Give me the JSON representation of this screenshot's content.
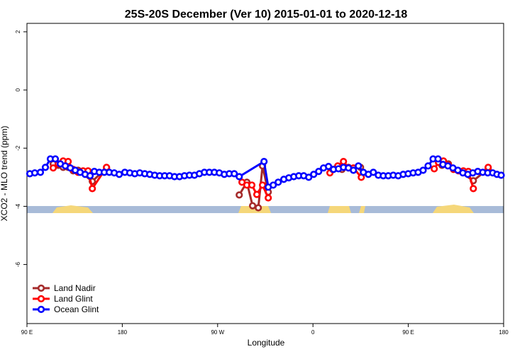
{
  "chart_data": {
    "type": "line",
    "title": "25S-20S December (Ver 10)   2015-01-01 to 2020-12-18",
    "x_label": "Longitude",
    "y_label": "XCO2 - MLO trend (ppm)",
    "xlim": [
      90,
      540
    ],
    "ylim": [
      -8.03,
      2.29
    ],
    "xticks": [
      {
        "value": 90,
        "label": "90 E"
      },
      180,
      {
        "value": 270,
        "label": "90 W"
      },
      {
        "value": 360,
        "label": "0"
      },
      {
        "value": 450,
        "label": "90 E"
      },
      {
        "value": 540,
        "label": "180"
      }
    ],
    "yticks": [
      -6,
      -4,
      -2,
      0,
      2
    ],
    "legend": "bottom-left",
    "series": [
      {
        "name": "Land Nadir",
        "color": "#a52a2a",
        "x": [
          114.8,
          119.5,
          124.2,
          128.9,
          133.6,
          138.3,
          151.7,
          165.1,
          null,
          290.4,
          297.6,
          303.0,
          308.4,
          312.4,
          317.8,
          null,
          387.5,
          393.5,
          404.9,
          null,
          481.8,
          487.9,
          511.4,
          525.4
        ],
        "values": [
          -2.54,
          -2.59,
          -2.66,
          -2.66,
          -2.78,
          -2.76,
          -3.14,
          -2.68,
          null,
          -3.61,
          -3.17,
          -3.98,
          -4.05,
          -2.61,
          -3.51,
          null,
          -2.73,
          -2.66,
          -2.66,
          null,
          -2.59,
          -2.54,
          -3.12,
          -2.71
        ]
      },
      {
        "name": "Land Glint",
        "color": "#ff0000",
        "x": [
          114.8,
          119.5,
          124.2,
          128.9,
          133.6,
          138.3,
          143.0,
          147.7,
          151.7,
          165.1,
          null,
          293.0,
          297.6,
          302.3,
          307.0,
          312.4,
          317.8,
          null,
          376.0,
          378.7,
          383.4,
          388.8,
          393.5,
          398.2,
          405.6,
          null,
          474.5,
          478.5,
          483.2,
          487.9,
          492.7,
          497.3,
          502.0,
          506.7,
          511.4,
          null,
          525.4
        ],
        "values": [
          -2.68,
          -2.54,
          -2.44,
          -2.46,
          -2.73,
          -2.83,
          -2.78,
          -2.78,
          -3.39,
          -2.66,
          null,
          -3.17,
          -3.27,
          -3.27,
          -3.59,
          -3.27,
          -3.71,
          null,
          -2.85,
          -2.73,
          -2.61,
          -2.46,
          -2.68,
          -2.68,
          -3.0,
          null,
          -2.71,
          -2.49,
          -2.44,
          -2.59,
          -2.73,
          -2.78,
          -2.78,
          -2.8,
          -3.39,
          null,
          -2.66
        ]
      },
      {
        "name": "Ocean Glint",
        "color": "#0000ff",
        "x": [
          92.7,
          97.4,
          102.7,
          107.4,
          112.1,
          116.8,
          121.5,
          126.2,
          130.9,
          135.6,
          140.2,
          144.9,
          149.6,
          153.6,
          158.3,
          163.0,
          167.7,
          172.4,
          177.1,
          182.4,
          187.1,
          191.8,
          196.5,
          201.2,
          205.9,
          210.6,
          215.3,
          220.0,
          224.6,
          229.3,
          234.0,
          238.7,
          243.4,
          248.1,
          252.8,
          257.5,
          262.2,
          266.9,
          271.6,
          276.3,
          281.0,
          285.7,
          290.4,
          313.8,
          317.8,
          322.5,
          327.2,
          332.5,
          337.2,
          341.9,
          346.6,
          351.3,
          356.0,
          360.7,
          365.4,
          370.0,
          374.7,
          379.4,
          384.1,
          388.8,
          393.5,
          398.2,
          402.9,
          407.6,
          412.3,
          417.0,
          421.7,
          426.4,
          431.1,
          435.8,
          440.5,
          445.2,
          449.9,
          454.6,
          459.3,
          464.0,
          468.7,
          473.4,
          478.1,
          482.7,
          487.4,
          492.1,
          496.8,
          501.5,
          506.2,
          510.9,
          515.6,
          520.3,
          525.0,
          529.7,
          533.7,
          537.7
        ],
        "values": [
          -2.88,
          -2.85,
          -2.83,
          -2.66,
          -2.37,
          -2.37,
          -2.54,
          -2.61,
          -2.68,
          -2.76,
          -2.83,
          -2.9,
          -2.95,
          -2.8,
          -2.83,
          -2.83,
          -2.83,
          -2.85,
          -2.9,
          -2.83,
          -2.85,
          -2.88,
          -2.85,
          -2.88,
          -2.9,
          -2.93,
          -2.95,
          -2.95,
          -2.95,
          -2.98,
          -2.98,
          -2.95,
          -2.93,
          -2.93,
          -2.88,
          -2.83,
          -2.83,
          -2.83,
          -2.85,
          -2.9,
          -2.88,
          -2.88,
          -2.98,
          -2.46,
          -3.34,
          -3.27,
          -3.17,
          -3.07,
          -3.02,
          -2.98,
          -2.95,
          -2.95,
          -3.0,
          -2.9,
          -2.8,
          -2.68,
          -2.63,
          -2.73,
          -2.71,
          -2.66,
          -2.68,
          -2.76,
          -2.61,
          -2.83,
          -2.9,
          -2.83,
          -2.93,
          -2.95,
          -2.95,
          -2.93,
          -2.95,
          -2.9,
          -2.88,
          -2.85,
          -2.83,
          -2.76,
          -2.61,
          -2.37,
          -2.37,
          -2.56,
          -2.61,
          -2.68,
          -2.76,
          -2.85,
          -2.9,
          -2.85,
          -2.8,
          -2.83,
          -2.85,
          -2.85,
          -2.9,
          -2.93
        ]
      }
    ]
  }
}
